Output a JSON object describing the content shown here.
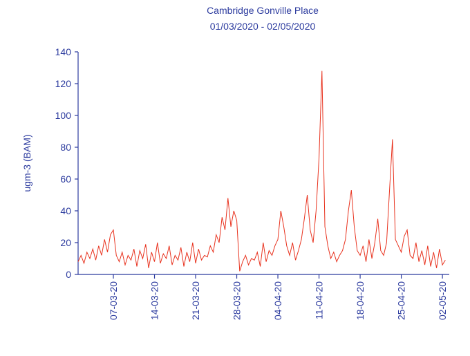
{
  "chart_data": {
    "type": "line",
    "title": "Cambridge Gonville Place",
    "subtitle": "01/03/2020 - 02/05/2020",
    "y_label": "ugm-3 (BAM)",
    "color": "#e8321e",
    "ylim": [
      0,
      140
    ],
    "yticks": [
      0,
      20,
      40,
      60,
      80,
      100,
      120,
      140
    ],
    "xlim": [
      "2020-03-01T00:00",
      "2020-05-03T04:00"
    ],
    "xticks": [
      {
        "value": "2020-03-07T00:00",
        "label": "07-03-20"
      },
      {
        "value": "2020-03-14T00:00",
        "label": "14-03-20"
      },
      {
        "value": "2020-03-21T00:00",
        "label": "21-03-20"
      },
      {
        "value": "2020-03-28T00:00",
        "label": "28-03-20"
      },
      {
        "value": "2020-04-04T00:00",
        "label": "04-04-20"
      },
      {
        "value": "2020-04-11T00:00",
        "label": "11-04-20"
      },
      {
        "value": "2020-04-18T00:00",
        "label": "18-04-20"
      },
      {
        "value": "2020-04-25T00:00",
        "label": "25-04-20"
      },
      {
        "value": "2020-05-02T00:00",
        "label": "02-05-20"
      }
    ],
    "x": [
      "2020-03-01T00:00",
      "2020-03-01T12:00",
      "2020-03-02T00:00",
      "2020-03-02T12:00",
      "2020-03-03T00:00",
      "2020-03-03T12:00",
      "2020-03-04T00:00",
      "2020-03-04T12:00",
      "2020-03-05T00:00",
      "2020-03-05T12:00",
      "2020-03-06T00:00",
      "2020-03-06T12:00",
      "2020-03-07T00:00",
      "2020-03-07T12:00",
      "2020-03-08T00:00",
      "2020-03-08T12:00",
      "2020-03-09T00:00",
      "2020-03-09T12:00",
      "2020-03-10T00:00",
      "2020-03-10T12:00",
      "2020-03-11T00:00",
      "2020-03-11T12:00",
      "2020-03-12T00:00",
      "2020-03-12T12:00",
      "2020-03-13T00:00",
      "2020-03-13T12:00",
      "2020-03-14T00:00",
      "2020-03-14T12:00",
      "2020-03-15T00:00",
      "2020-03-15T12:00",
      "2020-03-16T00:00",
      "2020-03-16T12:00",
      "2020-03-17T00:00",
      "2020-03-17T12:00",
      "2020-03-18T00:00",
      "2020-03-18T12:00",
      "2020-03-19T00:00",
      "2020-03-19T12:00",
      "2020-03-20T00:00",
      "2020-03-20T12:00",
      "2020-03-21T00:00",
      "2020-03-21T12:00",
      "2020-03-22T00:00",
      "2020-03-22T12:00",
      "2020-03-23T00:00",
      "2020-03-23T12:00",
      "2020-03-24T00:00",
      "2020-03-24T12:00",
      "2020-03-25T00:00",
      "2020-03-25T12:00",
      "2020-03-26T00:00",
      "2020-03-26T12:00",
      "2020-03-27T00:00",
      "2020-03-27T12:00",
      "2020-03-28T00:00",
      "2020-03-28T12:00",
      "2020-03-29T00:00",
      "2020-03-29T12:00",
      "2020-03-30T00:00",
      "2020-03-30T12:00",
      "2020-03-31T00:00",
      "2020-03-31T12:00",
      "2020-04-01T00:00",
      "2020-04-01T12:00",
      "2020-04-02T00:00",
      "2020-04-02T12:00",
      "2020-04-03T00:00",
      "2020-04-03T12:00",
      "2020-04-04T00:00",
      "2020-04-04T12:00",
      "2020-04-05T00:00",
      "2020-04-05T12:00",
      "2020-04-06T00:00",
      "2020-04-06T12:00",
      "2020-04-07T00:00",
      "2020-04-07T12:00",
      "2020-04-08T00:00",
      "2020-04-08T12:00",
      "2020-04-09T00:00",
      "2020-04-09T12:00",
      "2020-04-10T00:00",
      "2020-04-10T12:00",
      "2020-04-11T00:00",
      "2020-04-11T12:00",
      "2020-04-12T00:00",
      "2020-04-12T12:00",
      "2020-04-13T00:00",
      "2020-04-13T12:00",
      "2020-04-14T00:00",
      "2020-04-14T12:00",
      "2020-04-15T00:00",
      "2020-04-15T12:00",
      "2020-04-16T00:00",
      "2020-04-16T12:00",
      "2020-04-17T00:00",
      "2020-04-17T12:00",
      "2020-04-18T00:00",
      "2020-04-18T12:00",
      "2020-04-19T00:00",
      "2020-04-19T12:00",
      "2020-04-20T00:00",
      "2020-04-20T12:00",
      "2020-04-21T00:00",
      "2020-04-21T12:00",
      "2020-04-22T00:00",
      "2020-04-22T12:00",
      "2020-04-23T00:00",
      "2020-04-23T12:00",
      "2020-04-24T00:00",
      "2020-04-24T12:00",
      "2020-04-25T00:00",
      "2020-04-25T12:00",
      "2020-04-26T00:00",
      "2020-04-26T12:00",
      "2020-04-27T00:00",
      "2020-04-27T12:00",
      "2020-04-28T00:00",
      "2020-04-28T12:00",
      "2020-04-29T00:00",
      "2020-04-29T12:00",
      "2020-04-30T00:00",
      "2020-04-30T12:00",
      "2020-05-01T00:00",
      "2020-05-01T12:00",
      "2020-05-02T00:00",
      "2020-05-02T12:00"
    ],
    "values": [
      8,
      12,
      7,
      14,
      10,
      16,
      9,
      18,
      12,
      22,
      14,
      25,
      28,
      12,
      8,
      14,
      6,
      12,
      9,
      16,
      5,
      15,
      10,
      19,
      4,
      14,
      8,
      20,
      7,
      13,
      10,
      18,
      6,
      12,
      9,
      17,
      5,
      14,
      8,
      20,
      7,
      16,
      9,
      12,
      11,
      18,
      14,
      25,
      20,
      36,
      28,
      48,
      30,
      40,
      34,
      2,
      8,
      12,
      6,
      10,
      9,
      14,
      5,
      20,
      8,
      15,
      12,
      18,
      22,
      40,
      30,
      18,
      12,
      20,
      9,
      15,
      22,
      35,
      50,
      28,
      20,
      40,
      73,
      128,
      30,
      18,
      10,
      14,
      8,
      12,
      15,
      22,
      40,
      53,
      30,
      15,
      12,
      18,
      8,
      22,
      10,
      20,
      35,
      15,
      12,
      20,
      53,
      85,
      22,
      18,
      14,
      24,
      28,
      12,
      10,
      20,
      8,
      15,
      6,
      18,
      5,
      14,
      4,
      16,
      6,
      9
    ]
  }
}
